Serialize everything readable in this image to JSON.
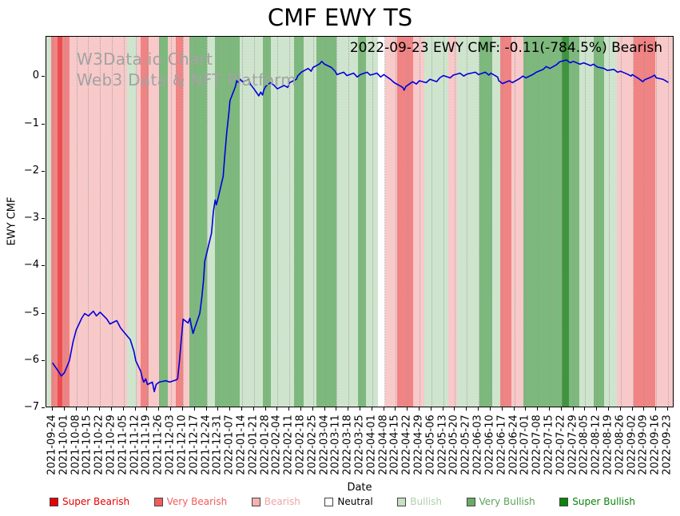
{
  "title": "CMF EWY TS",
  "annotation": "2022-09-23 EWY CMF: -0.11(-784.5%) Bearish",
  "watermark": {
    "line1": "W3Data.io Chart",
    "line2": "Web3 Data & NFT Platform"
  },
  "axes": {
    "x_label": "Date",
    "y_label": "EWY CMF",
    "y_ticks": [
      {
        "label": "0",
        "value": 0
      },
      {
        "label": "−1",
        "value": -1
      },
      {
        "label": "−2",
        "value": -2
      },
      {
        "label": "−3",
        "value": -3
      },
      {
        "label": "−4",
        "value": -4
      },
      {
        "label": "−5",
        "value": -5
      },
      {
        "label": "−6",
        "value": -6
      },
      {
        "label": "−7",
        "value": -7
      }
    ]
  },
  "colors": {
    "line": "#0000dd",
    "grid": "#9a9a9a",
    "watermark": "#a3a3a3",
    "bands": {
      "super_bearish": "#ea4f4f",
      "very_bearish": "#f08383",
      "bearish": "#f8c9c9",
      "neutral": "#ffffff",
      "bullish": "#cfe4cd",
      "very_bullish": "#7db87d",
      "super_bullish": "#3f943f"
    }
  },
  "legend": {
    "items": [
      {
        "id": "super-bearish",
        "label": "Super Bearish",
        "swatch": "#e60000",
        "text": "#e60000"
      },
      {
        "id": "very-bearish",
        "label": "Very Bearish",
        "swatch": "#f25c5c",
        "text": "#f25c5c"
      },
      {
        "id": "bearish",
        "label": "Bearish",
        "swatch": "#f6b0b0",
        "text": "#f0a3a3"
      },
      {
        "id": "neutral",
        "label": "Neutral",
        "swatch": "#ffffff",
        "text": "#000000"
      },
      {
        "id": "bullish",
        "label": "Bullish",
        "swatch": "#c7e0c4",
        "text": "#aed0ab"
      },
      {
        "id": "very-bullish",
        "label": "Very Bullish",
        "swatch": "#68ab68",
        "text": "#5ba25b"
      },
      {
        "id": "super-bullish",
        "label": "Super Bullish",
        "swatch": "#0c830c",
        "text": "#0c830c"
      }
    ]
  },
  "chart_data": {
    "type": "line",
    "title": "CMF EWY TS",
    "xlabel": "Date",
    "ylabel": "EWY CMF",
    "ylim": [
      -7.0,
      0.85
    ],
    "x_range": [
      "2021-09-24",
      "2022-09-23"
    ],
    "grid": "vertical-dotted",
    "legend_position": "bottom",
    "latest": {
      "date": "2022-09-23",
      "ticker": "EWY",
      "cmf": -0.11,
      "change_pct": "-784.5%",
      "signal": "Bearish"
    },
    "x_tick_labels": [
      "2021-09-24",
      "2021-10-01",
      "2021-10-08",
      "2021-10-15",
      "2021-10-22",
      "2021-10-29",
      "2021-11-05",
      "2021-11-12",
      "2021-11-19",
      "2021-11-26",
      "2021-12-03",
      "2021-12-10",
      "2021-12-17",
      "2021-12-24",
      "2021-12-31",
      "2022-01-07",
      "2022-01-14",
      "2022-01-21",
      "2022-01-28",
      "2022-02-04",
      "2022-02-11",
      "2022-02-18",
      "2022-02-25",
      "2022-03-04",
      "2022-03-11",
      "2022-03-18",
      "2022-03-25",
      "2022-04-01",
      "2022-04-08",
      "2022-04-15",
      "2022-04-22",
      "2022-04-29",
      "2022-05-06",
      "2022-05-13",
      "2022-05-20",
      "2022-05-27",
      "2022-06-03",
      "2022-06-10",
      "2022-06-17",
      "2022-06-24",
      "2022-07-01",
      "2022-07-08",
      "2022-07-15",
      "2022-07-22",
      "2022-07-29",
      "2022-08-05",
      "2022-08-12",
      "2022-08-19",
      "2022-08-26",
      "2022-09-02",
      "2022-09-09",
      "2022-09-16",
      "2022-09-23"
    ],
    "series": [
      {
        "name": "EWY CMF",
        "color": "#0000dd",
        "points": [
          [
            0.0,
            -6.05
          ],
          [
            0.008,
            -6.2
          ],
          [
            0.014,
            -6.32
          ],
          [
            0.019,
            -6.25
          ],
          [
            0.027,
            -6.0
          ],
          [
            0.033,
            -5.6
          ],
          [
            0.038,
            -5.35
          ],
          [
            0.047,
            -5.1
          ],
          [
            0.052,
            -5.0
          ],
          [
            0.058,
            -5.05
          ],
          [
            0.066,
            -4.95
          ],
          [
            0.071,
            -5.05
          ],
          [
            0.077,
            -4.97
          ],
          [
            0.088,
            -5.12
          ],
          [
            0.093,
            -5.22
          ],
          [
            0.104,
            -5.15
          ],
          [
            0.11,
            -5.3
          ],
          [
            0.115,
            -5.38
          ],
          [
            0.126,
            -5.55
          ],
          [
            0.132,
            -5.8
          ],
          [
            0.135,
            -6.0
          ],
          [
            0.143,
            -6.22
          ],
          [
            0.146,
            -6.38
          ],
          [
            0.148,
            -6.45
          ],
          [
            0.151,
            -6.38
          ],
          [
            0.154,
            -6.5
          ],
          [
            0.162,
            -6.45
          ],
          [
            0.165,
            -6.65
          ],
          [
            0.168,
            -6.5
          ],
          [
            0.173,
            -6.45
          ],
          [
            0.184,
            -6.42
          ],
          [
            0.19,
            -6.45
          ],
          [
            0.201,
            -6.4
          ],
          [
            0.203,
            -6.38
          ],
          [
            0.206,
            -6.0
          ],
          [
            0.209,
            -5.55
          ],
          [
            0.212,
            -5.12
          ],
          [
            0.22,
            -5.2
          ],
          [
            0.223,
            -5.1
          ],
          [
            0.225,
            -5.25
          ],
          [
            0.228,
            -5.42
          ],
          [
            0.231,
            -5.3
          ],
          [
            0.239,
            -5.0
          ],
          [
            0.242,
            -4.7
          ],
          [
            0.245,
            -4.3
          ],
          [
            0.247,
            -3.9
          ],
          [
            0.258,
            -3.3
          ],
          [
            0.261,
            -2.85
          ],
          [
            0.264,
            -2.6
          ],
          [
            0.266,
            -2.7
          ],
          [
            0.269,
            -2.55
          ],
          [
            0.277,
            -2.1
          ],
          [
            0.28,
            -1.6
          ],
          [
            0.283,
            -1.15
          ],
          [
            0.286,
            -0.8
          ],
          [
            0.288,
            -0.5
          ],
          [
            0.297,
            -0.2
          ],
          [
            0.299,
            -0.08
          ],
          [
            0.302,
            -0.12
          ],
          [
            0.305,
            -0.05
          ],
          [
            0.308,
            -0.1
          ],
          [
            0.319,
            -0.06
          ],
          [
            0.321,
            -0.15
          ],
          [
            0.327,
            -0.25
          ],
          [
            0.335,
            -0.4
          ],
          [
            0.338,
            -0.32
          ],
          [
            0.341,
            -0.38
          ],
          [
            0.343,
            -0.28
          ],
          [
            0.346,
            -0.2
          ],
          [
            0.354,
            -0.12
          ],
          [
            0.36,
            -0.18
          ],
          [
            0.365,
            -0.25
          ],
          [
            0.376,
            -0.18
          ],
          [
            0.382,
            -0.22
          ],
          [
            0.385,
            -0.12
          ],
          [
            0.396,
            -0.05
          ],
          [
            0.398,
            0.02
          ],
          [
            0.404,
            0.1
          ],
          [
            0.415,
            0.18
          ],
          [
            0.42,
            0.12
          ],
          [
            0.423,
            0.2
          ],
          [
            0.434,
            0.28
          ],
          [
            0.437,
            0.33
          ],
          [
            0.442,
            0.27
          ],
          [
            0.453,
            0.2
          ],
          [
            0.459,
            0.12
          ],
          [
            0.462,
            0.05
          ],
          [
            0.473,
            0.1
          ],
          [
            0.478,
            0.03
          ],
          [
            0.489,
            0.08
          ],
          [
            0.495,
            0.0
          ],
          [
            0.5,
            0.05
          ],
          [
            0.511,
            0.1
          ],
          [
            0.516,
            0.04
          ],
          [
            0.527,
            0.08
          ],
          [
            0.533,
            0.0
          ],
          [
            0.538,
            0.05
          ],
          [
            0.549,
            -0.05
          ],
          [
            0.555,
            -0.12
          ],
          [
            0.569,
            -0.22
          ],
          [
            0.571,
            -0.28
          ],
          [
            0.574,
            -0.2
          ],
          [
            0.585,
            -0.1
          ],
          [
            0.591,
            -0.15
          ],
          [
            0.596,
            -0.08
          ],
          [
            0.607,
            -0.12
          ],
          [
            0.613,
            -0.05
          ],
          [
            0.624,
            -0.1
          ],
          [
            0.629,
            -0.02
          ],
          [
            0.635,
            0.03
          ],
          [
            0.646,
            -0.02
          ],
          [
            0.651,
            0.04
          ],
          [
            0.662,
            0.08
          ],
          [
            0.668,
            0.02
          ],
          [
            0.673,
            0.06
          ],
          [
            0.687,
            0.1
          ],
          [
            0.692,
            0.05
          ],
          [
            0.703,
            0.1
          ],
          [
            0.709,
            0.04
          ],
          [
            0.712,
            0.08
          ],
          [
            0.723,
            0.0
          ],
          [
            0.725,
            -0.08
          ],
          [
            0.731,
            -0.14
          ],
          [
            0.742,
            -0.08
          ],
          [
            0.747,
            -0.12
          ],
          [
            0.758,
            -0.04
          ],
          [
            0.764,
            0.02
          ],
          [
            0.769,
            -0.02
          ],
          [
            0.78,
            0.05
          ],
          [
            0.786,
            0.1
          ],
          [
            0.797,
            0.16
          ],
          [
            0.802,
            0.22
          ],
          [
            0.808,
            0.18
          ],
          [
            0.819,
            0.26
          ],
          [
            0.824,
            0.32
          ],
          [
            0.835,
            0.36
          ],
          [
            0.841,
            0.3
          ],
          [
            0.846,
            0.33
          ],
          [
            0.857,
            0.27
          ],
          [
            0.863,
            0.3
          ],
          [
            0.874,
            0.24
          ],
          [
            0.879,
            0.27
          ],
          [
            0.885,
            0.21
          ],
          [
            0.896,
            0.18
          ],
          [
            0.901,
            0.14
          ],
          [
            0.912,
            0.16
          ],
          [
            0.918,
            0.1
          ],
          [
            0.923,
            0.12
          ],
          [
            0.934,
            0.06
          ],
          [
            0.94,
            0.02
          ],
          [
            0.942,
            0.05
          ],
          [
            0.953,
            -0.04
          ],
          [
            0.959,
            -0.1
          ],
          [
            0.962,
            -0.06
          ],
          [
            0.973,
            0.0
          ],
          [
            0.978,
            0.04
          ],
          [
            0.981,
            -0.02
          ],
          [
            0.992,
            -0.05
          ],
          [
            1.0,
            -0.11
          ]
        ]
      }
    ],
    "background_bands": [
      [
        0.0,
        0.007,
        "bullish"
      ],
      [
        0.007,
        0.018,
        "very_bearish"
      ],
      [
        0.018,
        0.026,
        "super_bearish"
      ],
      [
        0.026,
        0.037,
        "very_bearish"
      ],
      [
        0.037,
        0.128,
        "bearish"
      ],
      [
        0.128,
        0.144,
        "bullish"
      ],
      [
        0.144,
        0.15,
        "bearish"
      ],
      [
        0.15,
        0.163,
        "very_bearish"
      ],
      [
        0.163,
        0.18,
        "bearish"
      ],
      [
        0.18,
        0.194,
        "very_bullish"
      ],
      [
        0.194,
        0.206,
        "bearish"
      ],
      [
        0.206,
        0.218,
        "very_bearish"
      ],
      [
        0.218,
        0.228,
        "bearish"
      ],
      [
        0.228,
        0.256,
        "very_bullish"
      ],
      [
        0.256,
        0.268,
        "bullish"
      ],
      [
        0.268,
        0.308,
        "very_bullish"
      ],
      [
        0.308,
        0.345,
        "bullish"
      ],
      [
        0.345,
        0.358,
        "very_bullish"
      ],
      [
        0.358,
        0.395,
        "bullish"
      ],
      [
        0.395,
        0.41,
        "very_bullish"
      ],
      [
        0.41,
        0.43,
        "bullish"
      ],
      [
        0.43,
        0.462,
        "very_bullish"
      ],
      [
        0.462,
        0.496,
        "bullish"
      ],
      [
        0.496,
        0.509,
        "very_bullish"
      ],
      [
        0.509,
        0.528,
        "bullish"
      ],
      [
        0.528,
        0.54,
        "neutral"
      ],
      [
        0.54,
        0.558,
        "bearish"
      ],
      [
        0.558,
        0.584,
        "very_bearish"
      ],
      [
        0.584,
        0.602,
        "bearish"
      ],
      [
        0.602,
        0.64,
        "bullish"
      ],
      [
        0.64,
        0.654,
        "bearish"
      ],
      [
        0.654,
        0.69,
        "bullish"
      ],
      [
        0.69,
        0.71,
        "very_bullish"
      ],
      [
        0.71,
        0.723,
        "bullish"
      ],
      [
        0.723,
        0.741,
        "very_bearish"
      ],
      [
        0.741,
        0.76,
        "bearish"
      ],
      [
        0.76,
        0.82,
        "very_bullish"
      ],
      [
        0.82,
        0.832,
        "super_bullish"
      ],
      [
        0.832,
        0.848,
        "very_bullish"
      ],
      [
        0.848,
        0.872,
        "bullish"
      ],
      [
        0.872,
        0.888,
        "very_bullish"
      ],
      [
        0.888,
        0.908,
        "bullish"
      ],
      [
        0.908,
        0.935,
        "bearish"
      ],
      [
        0.935,
        0.97,
        "very_bearish"
      ],
      [
        0.97,
        1.0,
        "bearish"
      ]
    ]
  }
}
